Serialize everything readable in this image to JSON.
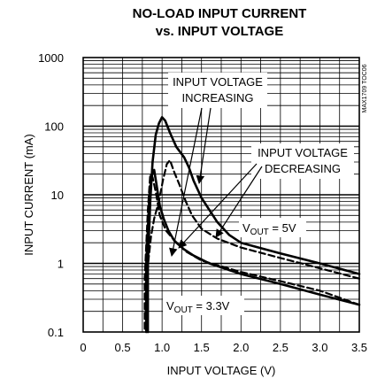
{
  "chart_data": {
    "type": "line",
    "title": "NO-LOAD INPUT CURRENT",
    "subtitle": "vs. INPUT VOLTAGE",
    "xlabel": "INPUT VOLTAGE (V)",
    "ylabel": "INPUT CURRENT (mA)",
    "xlim": [
      0,
      3.5
    ],
    "ylim": [
      0.1,
      1000
    ],
    "yscale": "log",
    "grid": true,
    "x_ticks": [
      "0",
      "0.5",
      "1.0",
      "1.5",
      "2.0",
      "2.5",
      "3.0",
      "3.5"
    ],
    "y_ticks": [
      "0.1",
      "1",
      "10",
      "100",
      "1000"
    ],
    "figure_code": "MAX1709 TOC06",
    "annotations": {
      "increasing_line1": "INPUT VOLTAGE",
      "increasing_line2": "INCREASING",
      "decreasing_line1": "INPUT VOLTAGE",
      "decreasing_line2": "DECREASING",
      "vout5_v": "V",
      "vout5_sub": "OUT",
      "vout5_val": " = 5V",
      "vout33_v": "V",
      "vout33_sub": "OUT",
      "vout33_val": " = 3.3V"
    },
    "series": [
      {
        "style": "solid",
        "direction": "increasing",
        "output": "5V",
        "x": [
          0.82,
          0.82,
          0.85,
          0.88,
          0.92,
          0.96,
          1.0,
          1.04,
          1.1,
          1.18,
          1.28,
          1.34,
          1.4,
          1.5,
          1.6,
          1.7,
          1.85,
          2.0,
          2.5,
          3.0,
          3.5
        ],
        "y": [
          0.1,
          1.0,
          8.0,
          30.0,
          75.0,
          110.0,
          135.0,
          120.0,
          80.0,
          50.0,
          35.0,
          25.0,
          16.0,
          9.0,
          6.0,
          4.0,
          2.6,
          2.0,
          1.4,
          1.0,
          0.7
        ]
      },
      {
        "style": "dashed",
        "direction": "decreasing",
        "output": "5V",
        "x": [
          3.5,
          3.0,
          2.5,
          2.0,
          1.7,
          1.5,
          1.38,
          1.3,
          1.22,
          1.15,
          1.1,
          1.06,
          1.01,
          0.96,
          0.9,
          0.86,
          0.83,
          0.8,
          0.8
        ],
        "y": [
          0.6,
          0.85,
          1.2,
          1.7,
          2.3,
          3.2,
          5.0,
          8.0,
          14.0,
          22.0,
          32.0,
          28.0,
          16.0,
          8.0,
          4.5,
          2.5,
          1.2,
          0.5,
          0.1
        ]
      },
      {
        "style": "solid",
        "direction": "increasing",
        "output": "3.3V",
        "x": [
          0.8,
          0.8,
          0.84,
          0.87,
          0.9,
          0.93,
          0.97,
          1.02,
          1.08,
          1.16,
          1.28,
          1.4,
          1.6,
          2.0,
          2.5,
          3.0,
          3.5
        ],
        "y": [
          0.1,
          1.0,
          10.0,
          19.0,
          23.0,
          14.0,
          7.0,
          4.5,
          3.0,
          2.1,
          1.6,
          1.3,
          1.0,
          0.7,
          0.5,
          0.35,
          0.25
        ]
      },
      {
        "style": "dashed",
        "direction": "decreasing",
        "output": "3.3V",
        "x": [
          3.5,
          3.0,
          2.5,
          2.0,
          1.5,
          1.3,
          1.15,
          1.05,
          0.97,
          0.92,
          0.88,
          0.85,
          0.82,
          0.78,
          0.78
        ],
        "y": [
          0.25,
          0.4,
          0.55,
          0.75,
          1.1,
          1.5,
          2.2,
          3.0,
          5.0,
          11.0,
          18.0,
          20.0,
          6.0,
          0.6,
          0.1
        ]
      }
    ]
  }
}
